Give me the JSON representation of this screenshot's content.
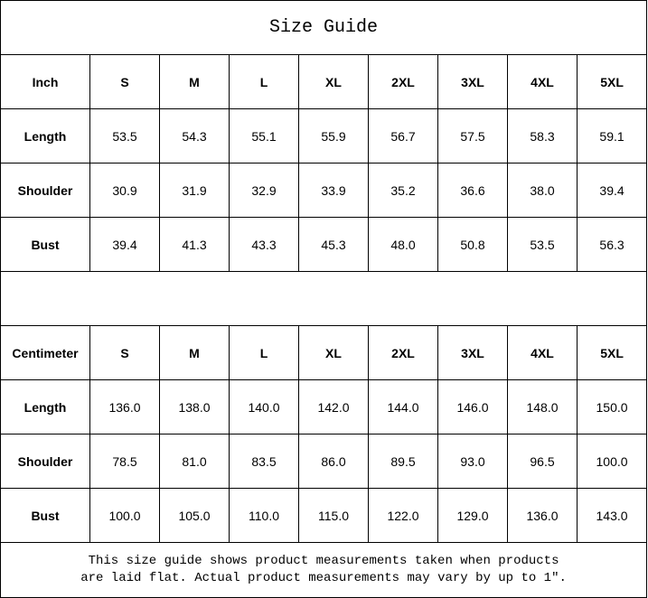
{
  "title": "Size Guide",
  "sizes": [
    "S",
    "M",
    "L",
    "XL",
    "2XL",
    "3XL",
    "4XL",
    "5XL"
  ],
  "tables": [
    {
      "unit": "Inch",
      "rows": [
        {
          "label": "Length",
          "values": [
            "53.5",
            "54.3",
            "55.1",
            "55.9",
            "56.7",
            "57.5",
            "58.3",
            "59.1"
          ]
        },
        {
          "label": "Shoulder",
          "values": [
            "30.9",
            "31.9",
            "32.9",
            "33.9",
            "35.2",
            "36.6",
            "38.0",
            "39.4"
          ]
        },
        {
          "label": "Bust",
          "values": [
            "39.4",
            "41.3",
            "43.3",
            "45.3",
            "48.0",
            "50.8",
            "53.5",
            "56.3"
          ]
        }
      ]
    },
    {
      "unit": "Centimeter",
      "rows": [
        {
          "label": "Length",
          "values": [
            "136.0",
            "138.0",
            "140.0",
            "142.0",
            "144.0",
            "146.0",
            "148.0",
            "150.0"
          ]
        },
        {
          "label": "Shoulder",
          "values": [
            "78.5",
            "81.0",
            "83.5",
            "86.0",
            "89.5",
            "93.0",
            "96.5",
            "100.0"
          ]
        },
        {
          "label": "Bust",
          "values": [
            "100.0",
            "105.0",
            "110.0",
            "115.0",
            "122.0",
            "129.0",
            "136.0",
            "143.0"
          ]
        }
      ]
    }
  ],
  "footer": {
    "line1": "This size guide shows product measurements taken when products",
    "line2": "are laid flat. Actual product measurements may vary by up to 1″."
  }
}
